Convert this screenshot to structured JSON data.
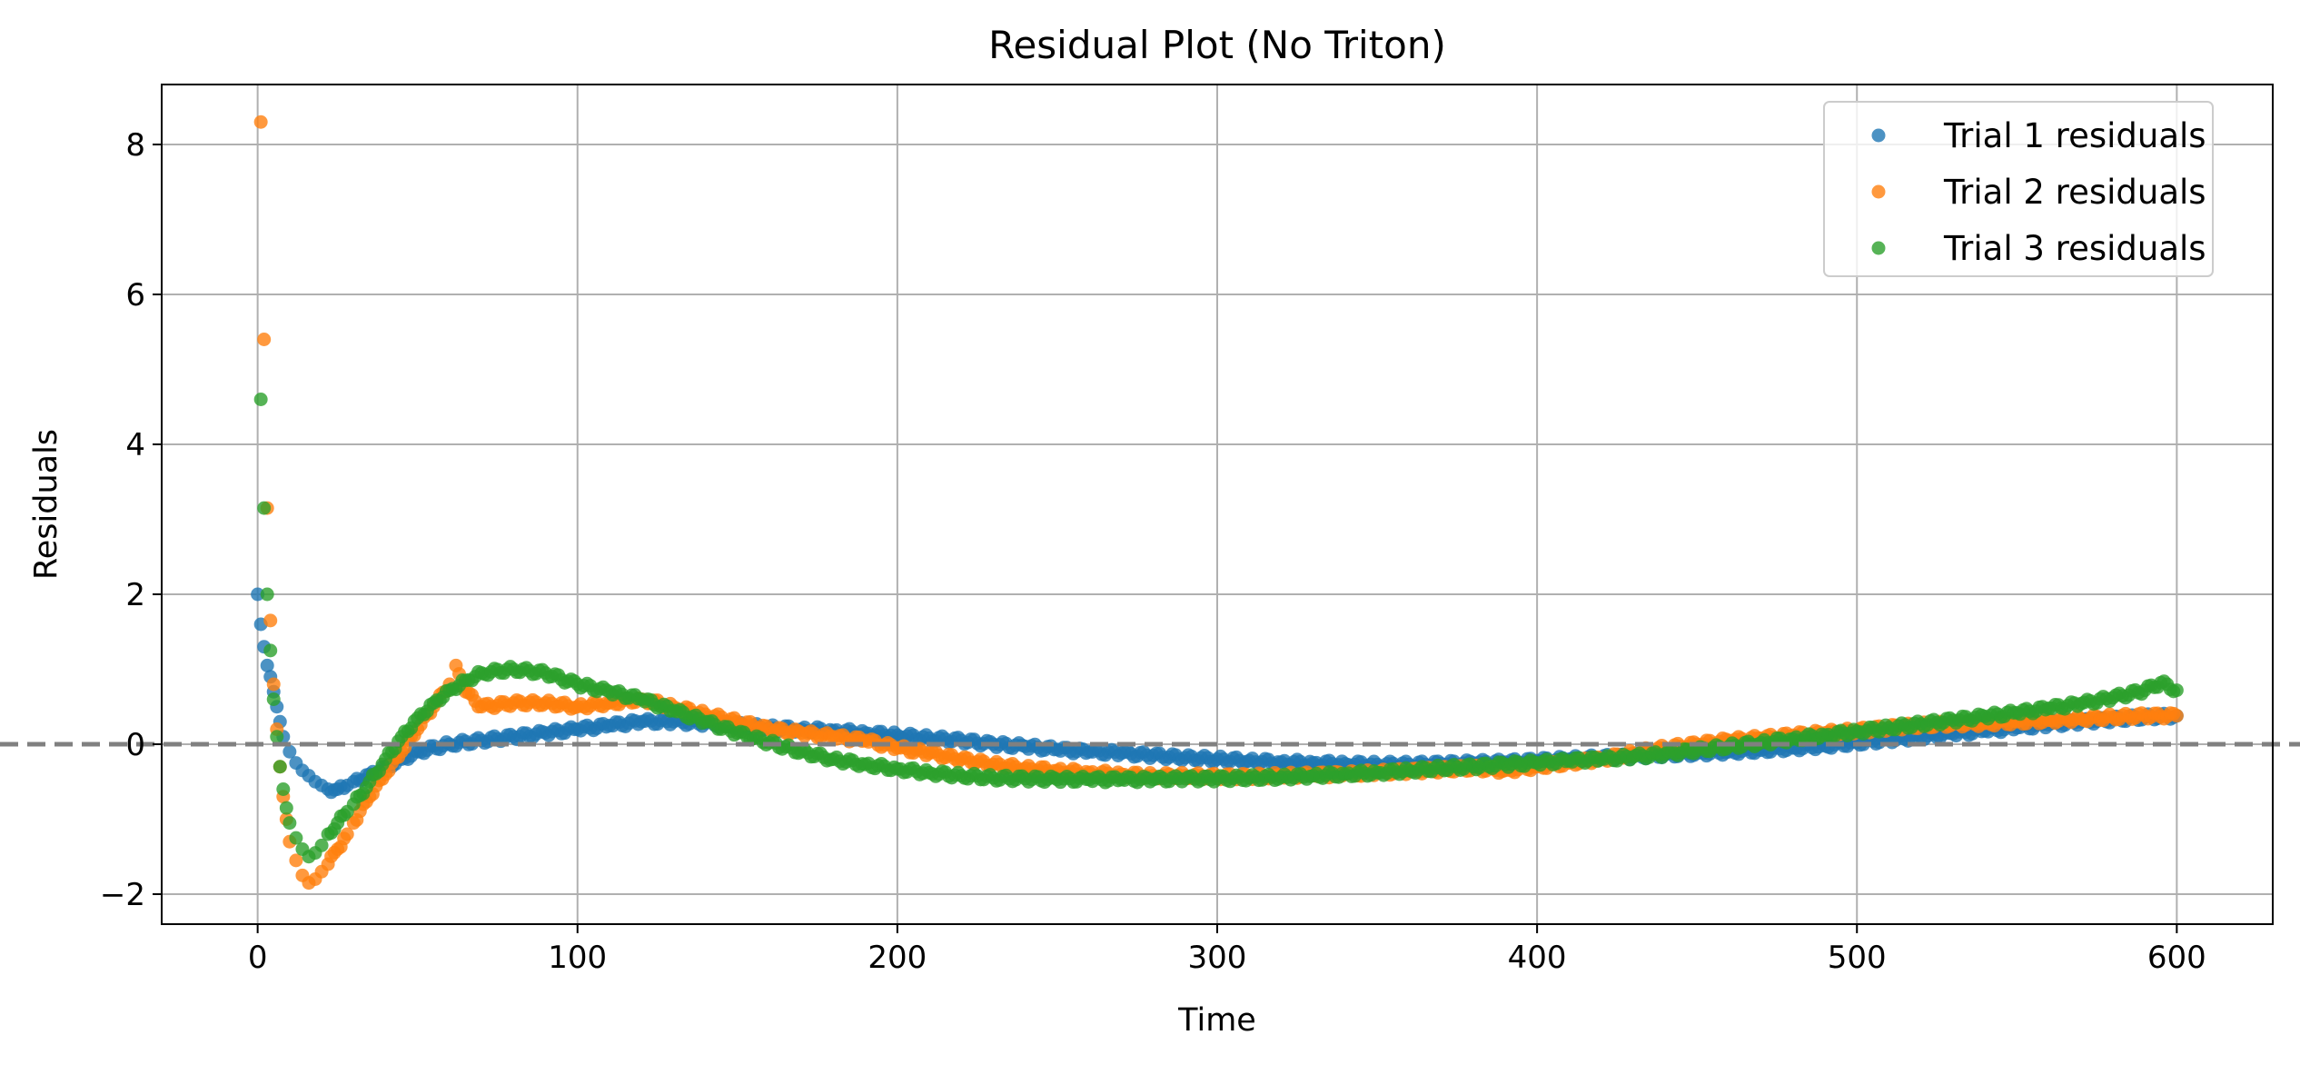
{
  "chart_data": {
    "type": "scatter",
    "title": "Residual Plot (No Triton)",
    "xlabel": "Time",
    "ylabel": "Residuals",
    "xlim": [
      -30,
      630
    ],
    "ylim": [
      -2.4,
      8.8
    ],
    "xticks": [
      0,
      100,
      200,
      300,
      400,
      500,
      600
    ],
    "yticks": [
      -2,
      0,
      2,
      4,
      6,
      8
    ],
    "xtick_labels": [
      "0",
      "100",
      "200",
      "300",
      "400",
      "500",
      "600"
    ],
    "ytick_labels": [
      "−2",
      "0",
      "2",
      "4",
      "6",
      "8"
    ],
    "grid": true,
    "legend_position": "top-right",
    "reference_line": {
      "y": 0,
      "style": "dashed",
      "color": "#808080"
    },
    "series": [
      {
        "name": "Trial 1 residuals",
        "color": "#1f77b4",
        "points": [
          [
            0,
            2.0
          ],
          [
            1,
            1.6
          ],
          [
            2,
            1.3
          ],
          [
            3,
            1.05
          ],
          [
            4,
            0.9
          ],
          [
            5,
            0.7
          ],
          [
            6,
            0.5
          ],
          [
            7,
            0.3
          ],
          [
            8,
            0.1
          ],
          [
            10,
            -0.1
          ],
          [
            12,
            -0.25
          ],
          [
            14,
            -0.35
          ],
          [
            16,
            -0.42
          ],
          [
            18,
            -0.5
          ],
          [
            20,
            -0.55
          ],
          [
            22,
            -0.6
          ],
          [
            25,
            -0.6
          ],
          [
            28,
            -0.55
          ],
          [
            30,
            -0.5
          ],
          [
            35,
            -0.4
          ],
          [
            40,
            -0.3
          ],
          [
            45,
            -0.2
          ],
          [
            50,
            -0.1
          ],
          [
            60,
            0.0
          ],
          [
            70,
            0.05
          ],
          [
            80,
            0.1
          ],
          [
            90,
            0.15
          ],
          [
            100,
            0.2
          ],
          [
            110,
            0.25
          ],
          [
            120,
            0.3
          ],
          [
            130,
            0.3
          ],
          [
            140,
            0.28
          ],
          [
            150,
            0.25
          ],
          [
            160,
            0.22
          ],
          [
            170,
            0.2
          ],
          [
            180,
            0.18
          ],
          [
            190,
            0.15
          ],
          [
            200,
            0.12
          ],
          [
            210,
            0.08
          ],
          [
            220,
            0.05
          ],
          [
            230,
            0.0
          ],
          [
            240,
            -0.03
          ],
          [
            250,
            -0.07
          ],
          [
            260,
            -0.1
          ],
          [
            270,
            -0.12
          ],
          [
            280,
            -0.15
          ],
          [
            290,
            -0.18
          ],
          [
            300,
            -0.2
          ],
          [
            310,
            -0.22
          ],
          [
            320,
            -0.24
          ],
          [
            330,
            -0.25
          ],
          [
            340,
            -0.26
          ],
          [
            350,
            -0.27
          ],
          [
            360,
            -0.27
          ],
          [
            370,
            -0.26
          ],
          [
            380,
            -0.25
          ],
          [
            390,
            -0.24
          ],
          [
            400,
            -0.22
          ],
          [
            410,
            -0.2
          ],
          [
            420,
            -0.18
          ],
          [
            430,
            -0.16
          ],
          [
            440,
            -0.14
          ],
          [
            450,
            -0.12
          ],
          [
            460,
            -0.1
          ],
          [
            470,
            -0.08
          ],
          [
            480,
            -0.05
          ],
          [
            490,
            -0.02
          ],
          [
            500,
            0.02
          ],
          [
            510,
            0.06
          ],
          [
            520,
            0.1
          ],
          [
            530,
            0.14
          ],
          [
            540,
            0.18
          ],
          [
            550,
            0.22
          ],
          [
            560,
            0.26
          ],
          [
            570,
            0.3
          ],
          [
            580,
            0.33
          ],
          [
            590,
            0.36
          ],
          [
            600,
            0.38
          ]
        ]
      },
      {
        "name": "Trial 2 residuals",
        "color": "#ff7f0e",
        "points": [
          [
            1,
            8.3
          ],
          [
            2,
            5.4
          ],
          [
            3,
            3.15
          ],
          [
            4,
            1.65
          ],
          [
            5,
            0.8
          ],
          [
            6,
            0.2
          ],
          [
            7,
            -0.3
          ],
          [
            8,
            -0.7
          ],
          [
            9,
            -1.0
          ],
          [
            10,
            -1.3
          ],
          [
            12,
            -1.55
          ],
          [
            14,
            -1.75
          ],
          [
            16,
            -1.85
          ],
          [
            18,
            -1.8
          ],
          [
            20,
            -1.7
          ],
          [
            22,
            -1.6
          ],
          [
            25,
            -1.4
          ],
          [
            28,
            -1.2
          ],
          [
            30,
            -1.05
          ],
          [
            35,
            -0.7
          ],
          [
            40,
            -0.4
          ],
          [
            45,
            -0.1
          ],
          [
            50,
            0.2
          ],
          [
            55,
            0.5
          ],
          [
            60,
            0.8
          ],
          [
            62,
            1.05
          ],
          [
            65,
            0.7
          ],
          [
            70,
            0.5
          ],
          [
            80,
            0.55
          ],
          [
            90,
            0.55
          ],
          [
            100,
            0.5
          ],
          [
            110,
            0.55
          ],
          [
            120,
            0.6
          ],
          [
            130,
            0.5
          ],
          [
            140,
            0.4
          ],
          [
            150,
            0.3
          ],
          [
            160,
            0.2
          ],
          [
            170,
            0.15
          ],
          [
            180,
            0.1
          ],
          [
            190,
            0.05
          ],
          [
            200,
            -0.05
          ],
          [
            210,
            -0.12
          ],
          [
            220,
            -0.2
          ],
          [
            230,
            -0.27
          ],
          [
            240,
            -0.32
          ],
          [
            250,
            -0.35
          ],
          [
            260,
            -0.38
          ],
          [
            270,
            -0.4
          ],
          [
            280,
            -0.42
          ],
          [
            290,
            -0.42
          ],
          [
            300,
            -0.43
          ],
          [
            310,
            -0.43
          ],
          [
            320,
            -0.42
          ],
          [
            330,
            -0.41
          ],
          [
            340,
            -0.4
          ],
          [
            350,
            -0.38
          ],
          [
            360,
            -0.36
          ],
          [
            370,
            -0.34
          ],
          [
            380,
            -0.32
          ],
          [
            390,
            -0.35
          ],
          [
            400,
            -0.3
          ],
          [
            410,
            -0.25
          ],
          [
            420,
            -0.2
          ],
          [
            430,
            -0.12
          ],
          [
            440,
            -0.05
          ],
          [
            450,
            0.0
          ],
          [
            460,
            0.05
          ],
          [
            470,
            0.08
          ],
          [
            480,
            0.12
          ],
          [
            490,
            0.15
          ],
          [
            500,
            0.18
          ],
          [
            510,
            0.22
          ],
          [
            520,
            0.25
          ],
          [
            530,
            0.27
          ],
          [
            540,
            0.28
          ],
          [
            550,
            0.3
          ],
          [
            560,
            0.32
          ],
          [
            570,
            0.34
          ],
          [
            580,
            0.36
          ],
          [
            590,
            0.38
          ],
          [
            600,
            0.38
          ]
        ]
      },
      {
        "name": "Trial 3 residuals",
        "color": "#2ca02c",
        "points": [
          [
            1,
            4.6
          ],
          [
            2,
            3.15
          ],
          [
            3,
            2.0
          ],
          [
            4,
            1.25
          ],
          [
            5,
            0.6
          ],
          [
            6,
            0.1
          ],
          [
            7,
            -0.3
          ],
          [
            8,
            -0.6
          ],
          [
            9,
            -0.85
          ],
          [
            10,
            -1.05
          ],
          [
            12,
            -1.25
          ],
          [
            14,
            -1.4
          ],
          [
            16,
            -1.5
          ],
          [
            18,
            -1.45
          ],
          [
            20,
            -1.35
          ],
          [
            22,
            -1.2
          ],
          [
            25,
            -1.05
          ],
          [
            28,
            -0.9
          ],
          [
            30,
            -0.8
          ],
          [
            35,
            -0.5
          ],
          [
            40,
            -0.2
          ],
          [
            45,
            0.1
          ],
          [
            50,
            0.35
          ],
          [
            55,
            0.55
          ],
          [
            60,
            0.72
          ],
          [
            65,
            0.85
          ],
          [
            70,
            0.95
          ],
          [
            80,
            1.0
          ],
          [
            90,
            0.95
          ],
          [
            100,
            0.8
          ],
          [
            110,
            0.7
          ],
          [
            120,
            0.6
          ],
          [
            130,
            0.45
          ],
          [
            140,
            0.3
          ],
          [
            150,
            0.15
          ],
          [
            160,
            0.02
          ],
          [
            170,
            -0.1
          ],
          [
            180,
            -0.2
          ],
          [
            190,
            -0.27
          ],
          [
            200,
            -0.33
          ],
          [
            210,
            -0.38
          ],
          [
            220,
            -0.42
          ],
          [
            230,
            -0.45
          ],
          [
            240,
            -0.46
          ],
          [
            250,
            -0.47
          ],
          [
            260,
            -0.47
          ],
          [
            270,
            -0.47
          ],
          [
            280,
            -0.47
          ],
          [
            290,
            -0.46
          ],
          [
            300,
            -0.46
          ],
          [
            310,
            -0.45
          ],
          [
            320,
            -0.44
          ],
          [
            330,
            -0.42
          ],
          [
            340,
            -0.4
          ],
          [
            350,
            -0.38
          ],
          [
            360,
            -0.35
          ],
          [
            370,
            -0.32
          ],
          [
            380,
            -0.3
          ],
          [
            390,
            -0.27
          ],
          [
            400,
            -0.25
          ],
          [
            410,
            -0.22
          ],
          [
            420,
            -0.2
          ],
          [
            430,
            -0.17
          ],
          [
            440,
            -0.13
          ],
          [
            450,
            -0.08
          ],
          [
            460,
            -0.03
          ],
          [
            470,
            0.02
          ],
          [
            480,
            0.07
          ],
          [
            490,
            0.12
          ],
          [
            500,
            0.17
          ],
          [
            510,
            0.22
          ],
          [
            520,
            0.27
          ],
          [
            530,
            0.32
          ],
          [
            540,
            0.37
          ],
          [
            550,
            0.42
          ],
          [
            560,
            0.48
          ],
          [
            570,
            0.54
          ],
          [
            580,
            0.62
          ],
          [
            590,
            0.72
          ],
          [
            595,
            0.82
          ],
          [
            600,
            0.72
          ]
        ]
      }
    ]
  }
}
